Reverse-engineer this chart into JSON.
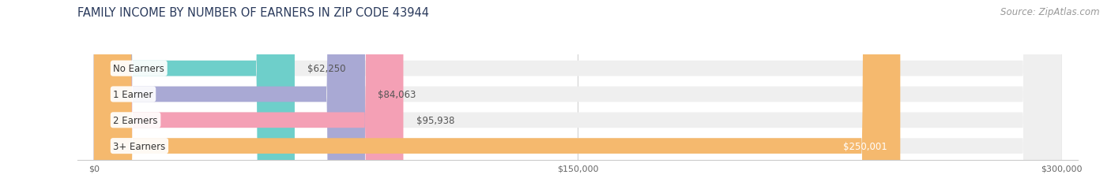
{
  "title": "FAMILY INCOME BY NUMBER OF EARNERS IN ZIP CODE 43944",
  "source": "Source: ZipAtlas.com",
  "categories": [
    "No Earners",
    "1 Earner",
    "2 Earners",
    "3+ Earners"
  ],
  "values": [
    62250,
    84063,
    95938,
    250001
  ],
  "value_labels": [
    "$62,250",
    "$84,063",
    "$95,938",
    "$250,001"
  ],
  "bar_colors": [
    "#6ecfca",
    "#a9a9d4",
    "#f4a0b5",
    "#f5b96e"
  ],
  "bar_bg_color": "#efefef",
  "background_color": "#ffffff",
  "xmax": 300000,
  "xtick_labels": [
    "$0",
    "$150,000",
    "$300,000"
  ],
  "title_fontsize": 10.5,
  "source_fontsize": 8.5,
  "label_fontsize": 8.5,
  "value_fontsize": 8.5
}
